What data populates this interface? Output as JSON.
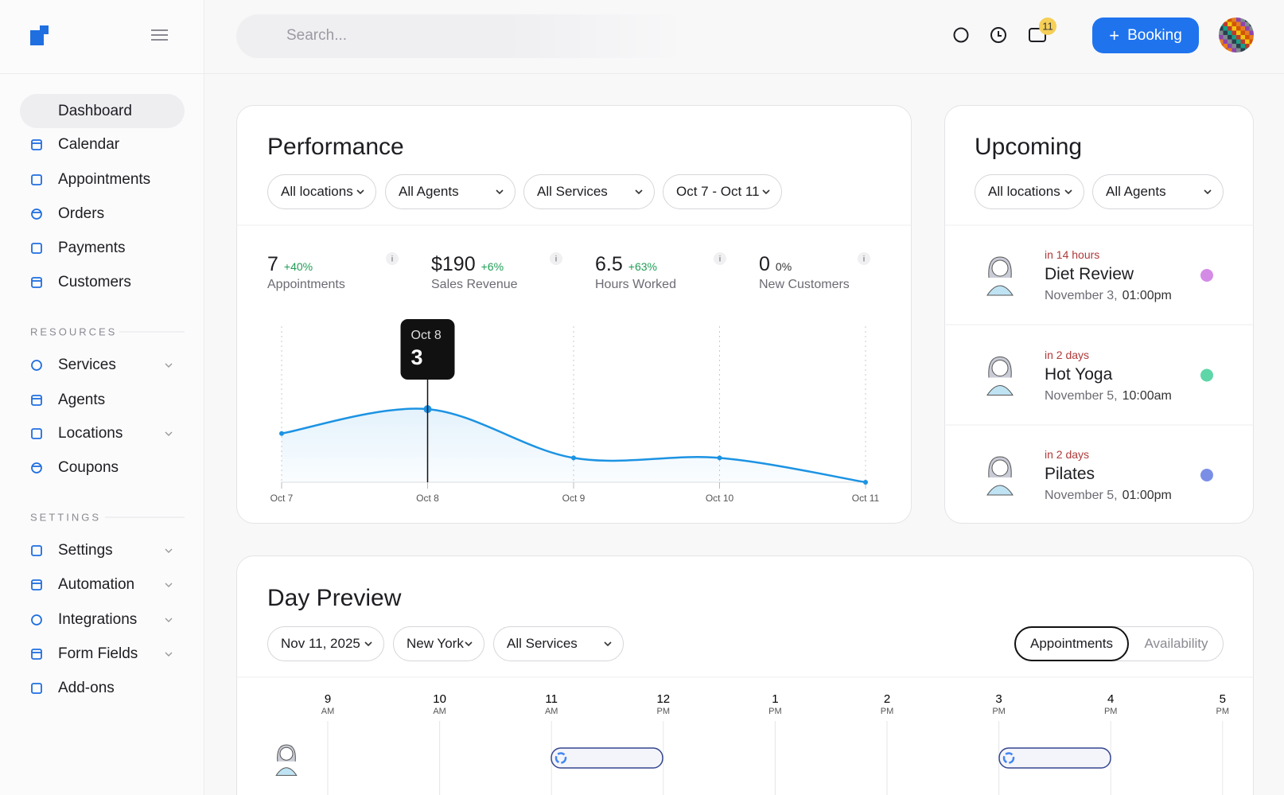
{
  "sidebar": {
    "nav": [
      "Dashboard",
      "Calendar",
      "Appointments",
      "Orders",
      "Payments",
      "Customers"
    ],
    "resources": {
      "heading": "RESOURCES",
      "items": [
        "Services",
        "Agents",
        "Locations",
        "Coupons"
      ]
    },
    "settings": {
      "heading": "SETTINGS",
      "items": [
        "Settings",
        "Automation",
        "Integrations",
        "Form Fields",
        "Add-ons"
      ]
    }
  },
  "header": {
    "search_placeholder": "Search...",
    "notification_count": 11,
    "booking_button": "Booking"
  },
  "performance": {
    "title": "Performance",
    "filters": [
      "All locations",
      "All Agents",
      "All Services",
      "Oct 7 - Oct 11"
    ],
    "stats": [
      {
        "value": 7,
        "change": "+40%",
        "label": "Appointments"
      },
      {
        "value": "$190",
        "change": "+6%",
        "label": "Sales Revenue"
      },
      {
        "value": 6.5,
        "change": "+63%",
        "label": "Hours Worked"
      },
      {
        "value": 0,
        "change": "0%",
        "label": "New Customers"
      }
    ],
    "chart_data": {
      "type": "line",
      "categories": [
        "Oct 7",
        "Oct 8",
        "Oct 9",
        "Oct 10",
        "Oct 11"
      ],
      "values": [
        2,
        3,
        1,
        1,
        0
      ],
      "color": "#1c93e3",
      "ylim": [
        0,
        6.4
      ]
    }
  },
  "upcoming": {
    "title": "Upcoming",
    "filters": [
      "All locations",
      "All Agents"
    ],
    "items": [
      {
        "when": "in 14 hours",
        "title": "Diet Review",
        "date": "November 3,",
        "time": "01:00pm",
        "color": "#d48be6"
      },
      {
        "when": "in 2 days",
        "title": "Hot Yoga",
        "date": "November 5,",
        "time": "10:00am",
        "color": "#5fd6a8"
      },
      {
        "when": "in 2 days",
        "title": "Pilates",
        "date": "November 5,",
        "time": "01:00pm",
        "color": "#7b8ee6"
      }
    ]
  },
  "day_preview": {
    "title": "Day Preview",
    "filters": [
      "Nov 11, 2025",
      "New York",
      "All Services"
    ],
    "toggle": [
      "Appointments",
      "Availability"
    ],
    "hours": [
      {
        "hour": "9",
        "period": "AM"
      },
      {
        "hour": "10",
        "period": "AM"
      },
      {
        "hour": "11",
        "period": "AM"
      },
      {
        "hour": "12",
        "period": "PM"
      },
      {
        "hour": "1",
        "period": "PM"
      },
      {
        "hour": "2",
        "period": "PM"
      },
      {
        "hour": "3",
        "period": "PM"
      },
      {
        "hour": "4",
        "period": "PM"
      },
      {
        "hour": "5",
        "period": "PM"
      }
    ]
  }
}
